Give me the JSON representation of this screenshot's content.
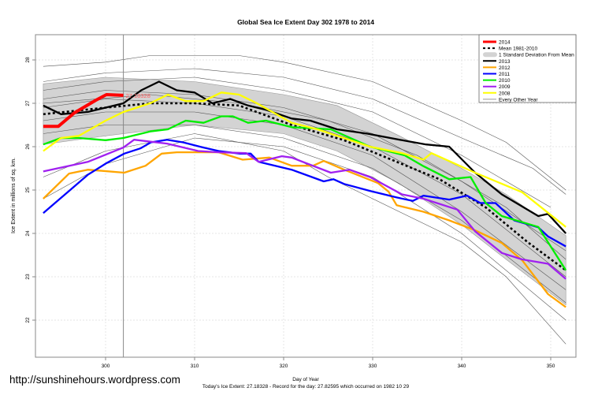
{
  "watermark": "http://sunshinehours.wordpress.com",
  "chart_data": {
    "type": "line",
    "title": "Global Sea Ice Extent Day 302 1978 to 2014",
    "xlabel": "Day of Year",
    "ylabel": "Ice Extent in millions of sq. km.",
    "caption": "Today's Ice Extent: 27.18328  - Record for the day: 27.82595 which occurred on 1982 10 29",
    "xlim": [
      292,
      352.8
    ],
    "ylim": [
      21.2,
      28.6
    ],
    "xticks": [
      300,
      310,
      320,
      330,
      340,
      350
    ],
    "yticks": [
      22,
      23,
      24,
      25,
      26,
      27,
      28
    ],
    "grid": true,
    "legend_position": "top-right",
    "marker_day": 302,
    "today_label": "27.18328",
    "sd_band": {
      "name": "1 Standard Deviation From Mean",
      "color": "#d3d3d3",
      "upper": [
        [
          293,
          27.45
        ],
        [
          300,
          27.6
        ],
        [
          310,
          27.5
        ],
        [
          320,
          27.2
        ],
        [
          326,
          26.95
        ],
        [
          333,
          26.25
        ],
        [
          340,
          25.5
        ],
        [
          345,
          24.9
        ],
        [
          351.7,
          23.95
        ]
      ],
      "lower": [
        [
          293,
          26.05
        ],
        [
          300,
          26.25
        ],
        [
          310,
          26.5
        ],
        [
          320,
          26.3
        ],
        [
          326,
          25.9
        ],
        [
          333,
          25.15
        ],
        [
          340,
          24.2
        ],
        [
          345,
          23.4
        ],
        [
          351.7,
          22.35
        ]
      ]
    },
    "background_series": {
      "name": "Every Other Year",
      "color": "#555555",
      "lines": [
        [
          [
            293,
            27.85
          ],
          [
            300,
            27.95
          ],
          [
            305,
            28.1
          ],
          [
            315,
            28.1
          ],
          [
            320,
            27.95
          ],
          [
            330,
            27.5
          ],
          [
            340,
            26.6
          ],
          [
            345,
            26.1
          ],
          [
            351.7,
            25.0
          ]
        ],
        [
          [
            293,
            27.5
          ],
          [
            300,
            27.7
          ],
          [
            310,
            27.8
          ],
          [
            320,
            27.6
          ],
          [
            330,
            27.1
          ],
          [
            340,
            26.2
          ],
          [
            348,
            25.5
          ],
          [
            351.7,
            24.9
          ]
        ],
        [
          [
            293,
            27.3
          ],
          [
            300,
            27.5
          ],
          [
            310,
            27.6
          ],
          [
            320,
            27.3
          ],
          [
            330,
            26.8
          ],
          [
            340,
            25.8
          ],
          [
            350,
            24.6
          ]
        ],
        [
          [
            293,
            27.1
          ],
          [
            300,
            27.3
          ],
          [
            310,
            27.2
          ],
          [
            320,
            26.9
          ],
          [
            330,
            26.3
          ],
          [
            340,
            25.2
          ],
          [
            351.7,
            23.6
          ]
        ],
        [
          [
            293,
            26.9
          ],
          [
            300,
            27.1
          ],
          [
            310,
            27.0
          ],
          [
            320,
            26.7
          ],
          [
            330,
            26.0
          ],
          [
            340,
            24.9
          ],
          [
            351.7,
            23.0
          ]
        ],
        [
          [
            293,
            26.6
          ],
          [
            300,
            26.8
          ],
          [
            310,
            26.8
          ],
          [
            320,
            26.5
          ],
          [
            330,
            25.8
          ],
          [
            340,
            24.5
          ],
          [
            351.7,
            22.7
          ]
        ],
        [
          [
            293,
            26.3
          ],
          [
            300,
            26.5
          ],
          [
            310,
            26.5
          ],
          [
            320,
            26.2
          ],
          [
            330,
            25.5
          ],
          [
            340,
            24.3
          ],
          [
            351.7,
            22.4
          ]
        ],
        [
          [
            293,
            25.3
          ],
          [
            300,
            25.9
          ],
          [
            310,
            26.3
          ],
          [
            320,
            25.9
          ],
          [
            325,
            25.3
          ],
          [
            330,
            24.8
          ],
          [
            340,
            23.8
          ],
          [
            345,
            23.0
          ],
          [
            351.7,
            21.45
          ]
        ],
        [
          [
            293,
            24.8
          ],
          [
            300,
            25.6
          ],
          [
            310,
            26.2
          ],
          [
            320,
            26.0
          ],
          [
            330,
            25.3
          ],
          [
            340,
            24.0
          ],
          [
            351.7,
            22.0
          ]
        ],
        [
          [
            293,
            27.0
          ],
          [
            305,
            27.2
          ],
          [
            315,
            27.0
          ],
          [
            325,
            26.6
          ],
          [
            335,
            25.8
          ],
          [
            345,
            24.6
          ],
          [
            351.7,
            23.4
          ]
        ]
      ]
    },
    "series": [
      {
        "name": "Mean 1981-2010",
        "color": "#000000",
        "style": "dotted",
        "points": [
          [
            293,
            26.75
          ],
          [
            300,
            26.9
          ],
          [
            305,
            27.0
          ],
          [
            310,
            27.0
          ],
          [
            315,
            26.95
          ],
          [
            320.9,
            26.5
          ],
          [
            326.8,
            26.15
          ],
          [
            333.3,
            25.6
          ],
          [
            337.5,
            25.25
          ],
          [
            342.7,
            24.6
          ],
          [
            347.4,
            23.8
          ],
          [
            351.7,
            23.15
          ]
        ]
      },
      {
        "name": "2013",
        "color": "#000000",
        "style": "solid",
        "points": [
          [
            293,
            26.95
          ],
          [
            295,
            26.75
          ],
          [
            298,
            26.8
          ],
          [
            300,
            26.9
          ],
          [
            302,
            27.0
          ],
          [
            304,
            27.3
          ],
          [
            306,
            27.5
          ],
          [
            308,
            27.3
          ],
          [
            310,
            27.25
          ],
          [
            312,
            27.0
          ],
          [
            314,
            27.1
          ],
          [
            316,
            26.95
          ],
          [
            318,
            26.85
          ],
          [
            320.9,
            26.65
          ],
          [
            323,
            26.6
          ],
          [
            326,
            26.4
          ],
          [
            329.4,
            26.3
          ],
          [
            333.3,
            26.15
          ],
          [
            336,
            26.05
          ],
          [
            338.6,
            26.0
          ],
          [
            341.5,
            25.4
          ],
          [
            344.5,
            24.9
          ],
          [
            348.6,
            24.4
          ],
          [
            349.7,
            24.45
          ],
          [
            351.7,
            24.0
          ]
        ]
      },
      {
        "name": "2012",
        "color": "#ffa500",
        "style": "solid",
        "points": [
          [
            293,
            24.8
          ],
          [
            295.9,
            25.38
          ],
          [
            298,
            25.47
          ],
          [
            299.2,
            25.45
          ],
          [
            302.1,
            25.4
          ],
          [
            304.5,
            25.56
          ],
          [
            306.3,
            25.84
          ],
          [
            308,
            25.87
          ],
          [
            312.7,
            25.87
          ],
          [
            315.4,
            25.7
          ],
          [
            318.4,
            25.75
          ],
          [
            320.9,
            25.56
          ],
          [
            323.3,
            25.56
          ],
          [
            324.5,
            25.67
          ],
          [
            326.8,
            25.47
          ],
          [
            330.6,
            25.16
          ],
          [
            331.8,
            24.96
          ],
          [
            332.7,
            24.65
          ],
          [
            335.7,
            24.5
          ],
          [
            338.6,
            24.3
          ],
          [
            341.5,
            24.07
          ],
          [
            344.5,
            23.78
          ],
          [
            346.8,
            23.38
          ],
          [
            349.7,
            22.6
          ],
          [
            351.7,
            22.3
          ]
        ]
      },
      {
        "name": "2011",
        "color": "#0000ff",
        "style": "solid",
        "points": [
          [
            293,
            24.47
          ],
          [
            295.9,
            24.98
          ],
          [
            298,
            25.35
          ],
          [
            300.1,
            25.62
          ],
          [
            302.1,
            25.84
          ],
          [
            303.9,
            25.96
          ],
          [
            305.1,
            26.1
          ],
          [
            306.9,
            26.16
          ],
          [
            308.7,
            26.1
          ],
          [
            311,
            25.98
          ],
          [
            312.7,
            25.9
          ],
          [
            315.1,
            25.84
          ],
          [
            316.3,
            25.84
          ],
          [
            317.2,
            25.65
          ],
          [
            320.9,
            25.47
          ],
          [
            324.5,
            25.2
          ],
          [
            325.6,
            25.25
          ],
          [
            326.8,
            25.14
          ],
          [
            329.7,
            24.98
          ],
          [
            332.7,
            24.83
          ],
          [
            334.5,
            24.75
          ],
          [
            335.7,
            24.87
          ],
          [
            338.6,
            24.78
          ],
          [
            340.6,
            24.87
          ],
          [
            342.1,
            24.7
          ],
          [
            343.8,
            24.7
          ],
          [
            345.9,
            24.3
          ],
          [
            348.6,
            24.14
          ],
          [
            349.7,
            23.93
          ],
          [
            351.7,
            23.7
          ]
        ]
      },
      {
        "name": "2010",
        "color": "#00ee00",
        "style": "solid",
        "points": [
          [
            293,
            26.05
          ],
          [
            295,
            26.2
          ],
          [
            297,
            26.2
          ],
          [
            300,
            26.15
          ],
          [
            302,
            26.2
          ],
          [
            305,
            26.35
          ],
          [
            307,
            26.4
          ],
          [
            309,
            26.6
          ],
          [
            311,
            26.55
          ],
          [
            313,
            26.7
          ],
          [
            314.3,
            26.7
          ],
          [
            316,
            26.55
          ],
          [
            318,
            26.6
          ],
          [
            320.9,
            26.45
          ],
          [
            325.3,
            26.4
          ],
          [
            329.7,
            26.0
          ],
          [
            333.6,
            25.8
          ],
          [
            335.7,
            25.55
          ],
          [
            338.6,
            25.25
          ],
          [
            341,
            25.3
          ],
          [
            342.7,
            24.7
          ],
          [
            344.5,
            24.4
          ],
          [
            348.6,
            24.15
          ],
          [
            351.7,
            23.15
          ]
        ]
      },
      {
        "name": "2009",
        "color": "#a020f0",
        "style": "solid",
        "points": [
          [
            293,
            25.43
          ],
          [
            298,
            25.65
          ],
          [
            302,
            25.98
          ],
          [
            303.2,
            26.16
          ],
          [
            306.9,
            26.07
          ],
          [
            310.4,
            25.9
          ],
          [
            312.7,
            25.87
          ],
          [
            315.8,
            25.85
          ],
          [
            317.2,
            25.65
          ],
          [
            319.8,
            25.78
          ],
          [
            320.9,
            25.75
          ],
          [
            325.3,
            25.4
          ],
          [
            327.4,
            25.47
          ],
          [
            329.7,
            25.3
          ],
          [
            333.3,
            24.9
          ],
          [
            335.7,
            24.8
          ],
          [
            339.5,
            24.55
          ],
          [
            341.5,
            24.05
          ],
          [
            344.5,
            23.55
          ],
          [
            346.8,
            23.4
          ],
          [
            349.7,
            23.3
          ],
          [
            351.7,
            22.95
          ]
        ]
      },
      {
        "name": "2008",
        "color": "#ffff00",
        "style": "solid",
        "points": [
          [
            293,
            25.9
          ],
          [
            295,
            26.2
          ],
          [
            297,
            26.25
          ],
          [
            300,
            26.6
          ],
          [
            302,
            26.8
          ],
          [
            305,
            27.0
          ],
          [
            307,
            27.2
          ],
          [
            309,
            27.05
          ],
          [
            311,
            27.05
          ],
          [
            313,
            27.25
          ],
          [
            315,
            27.2
          ],
          [
            317,
            27.0
          ],
          [
            320.9,
            26.55
          ],
          [
            323.8,
            26.4
          ],
          [
            329.7,
            26.0
          ],
          [
            333.3,
            25.85
          ],
          [
            335.7,
            25.7
          ],
          [
            336.6,
            25.85
          ],
          [
            341.5,
            25.4
          ],
          [
            346.8,
            24.95
          ],
          [
            351.7,
            24.15
          ]
        ]
      },
      {
        "name": "2014",
        "color": "#ff0000",
        "style": "solid",
        "points": [
          [
            293,
            26.47
          ],
          [
            294.7,
            26.47
          ],
          [
            296.5,
            26.78
          ],
          [
            298.9,
            27.07
          ],
          [
            300.1,
            27.2
          ],
          [
            302,
            27.18328
          ]
        ]
      }
    ],
    "legend": [
      {
        "label": "2014",
        "color": "#ff0000",
        "kind": "thick"
      },
      {
        "label": "Mean 1981-2010",
        "color": "#000000",
        "kind": "dotted"
      },
      {
        "label": "1 Standard Deviation From Mean",
        "color": "#d3d3d3",
        "kind": "band"
      },
      {
        "label": "2013",
        "color": "#000000",
        "kind": "line"
      },
      {
        "label": "2012",
        "color": "#ffa500",
        "kind": "line"
      },
      {
        "label": "2011",
        "color": "#0000ff",
        "kind": "line"
      },
      {
        "label": "2010",
        "color": "#00ee00",
        "kind": "line"
      },
      {
        "label": "2009",
        "color": "#a020f0",
        "kind": "line"
      },
      {
        "label": "2008",
        "color": "#ffff00",
        "kind": "line"
      },
      {
        "label": "Every Other Year",
        "color": "#999999",
        "kind": "thin"
      }
    ]
  }
}
